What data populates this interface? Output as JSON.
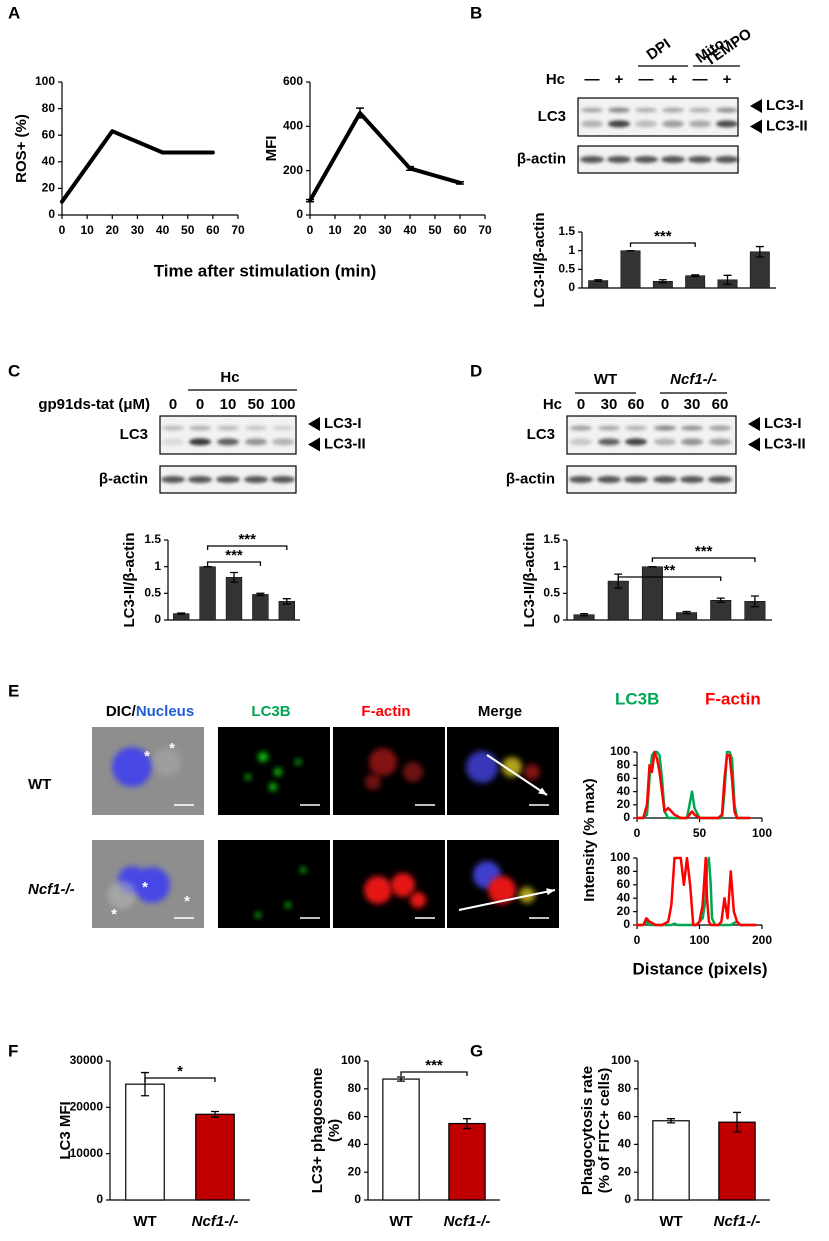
{
  "panel_labels": [
    "A",
    "B",
    "C",
    "D",
    "E",
    "F",
    "G"
  ],
  "chart_data": [
    {
      "type": "line",
      "ylabel": "ROS+ (%)",
      "xlabel": "Time after stimulation (min)",
      "x": [
        0,
        20,
        40,
        60
      ],
      "values": [
        10,
        63,
        47,
        47
      ],
      "color": "#000000",
      "xlim": [
        0,
        70
      ],
      "xticks": [
        0,
        10,
        20,
        30,
        40,
        50,
        60,
        70
      ],
      "ylim": [
        0,
        100
      ],
      "yticks": [
        0,
        20,
        40,
        60,
        80,
        100
      ]
    },
    {
      "type": "line",
      "ylabel": "MFI",
      "x": [
        0,
        20,
        40,
        60
      ],
      "values": [
        65,
        460,
        210,
        145
      ],
      "errors": [
        5,
        22,
        8,
        5
      ],
      "color": "#000000",
      "xlim": [
        0,
        70
      ],
      "xticks": [
        0,
        10,
        20,
        30,
        40,
        50,
        60,
        70
      ],
      "ylim": [
        0,
        600
      ],
      "yticks": [
        0,
        200,
        400,
        600
      ]
    },
    {
      "type": "bar",
      "ylabel": "LC3-II/β-actin",
      "categories": [
        null,
        null,
        null,
        null,
        null,
        null
      ],
      "values": [
        0.2,
        1,
        0.18,
        0.33,
        0.22,
        0.97
      ],
      "errors": [
        0.02,
        0,
        0.04,
        0.02,
        0.12,
        0.14
      ],
      "color": "#333333",
      "ylim": [
        0,
        1.5
      ],
      "yticks": [
        0,
        0.5,
        1,
        1.5
      ],
      "annotations": [
        "***"
      ]
    },
    {
      "type": "bar",
      "ylabel": "LC3-II/β-actin",
      "categories": [
        null,
        null,
        null,
        null,
        null
      ],
      "values": [
        0.12,
        1,
        0.8,
        0.48,
        0.35
      ],
      "errors": [
        0.01,
        0,
        0.09,
        0.02,
        0.05
      ],
      "color": "#333333",
      "ylim": [
        0,
        1.5
      ],
      "yticks": [
        0,
        0.5,
        1,
        1.5
      ],
      "annotations": [
        "***",
        "***"
      ]
    },
    {
      "type": "bar",
      "ylabel": "LC3-II/β-actin",
      "categories": [
        null,
        null,
        null,
        null,
        null,
        null
      ],
      "values": [
        0.1,
        0.73,
        1,
        0.14,
        0.37,
        0.35
      ],
      "errors": [
        0.02,
        0.13,
        0,
        0.02,
        0.04,
        0.1
      ],
      "color": "#333333",
      "ylim": [
        0,
        1.5
      ],
      "yticks": [
        0,
        0.5,
        1,
        1.5
      ],
      "annotations": [
        "***",
        "**"
      ]
    },
    {
      "type": "line",
      "ylabel": "Intensity (% max)",
      "x": [
        0,
        5,
        8,
        10,
        12,
        14,
        16,
        18,
        20,
        22,
        25,
        30,
        35,
        40,
        42,
        44,
        46,
        50,
        55,
        60,
        65,
        68,
        70,
        72,
        74,
        76,
        78,
        80,
        85,
        90
      ],
      "series": [
        {
          "name": "LC3B",
          "color": "#00a651",
          "values": [
            0,
            0,
            5,
            60,
            95,
            100,
            100,
            95,
            60,
            10,
            0,
            0,
            0,
            0,
            20,
            40,
            15,
            0,
            0,
            0,
            0,
            0,
            40,
            100,
            100,
            90,
            20,
            0,
            0,
            0
          ]
        },
        {
          "name": "F-actin",
          "color": "#ff0000",
          "values": [
            0,
            0,
            20,
            80,
            70,
            100,
            90,
            70,
            40,
            10,
            15,
            5,
            0,
            0,
            5,
            10,
            5,
            0,
            0,
            0,
            0,
            5,
            60,
            95,
            95,
            60,
            10,
            0,
            0,
            0
          ]
        }
      ],
      "xlim": [
        0,
        100
      ],
      "xticks": [
        0,
        50,
        100
      ],
      "ylim": [
        0,
        100
      ],
      "yticks": [
        0,
        20,
        40,
        60,
        80,
        100
      ]
    },
    {
      "type": "line",
      "xlabel": "Distance (pixels)",
      "x": [
        0,
        10,
        15,
        20,
        30,
        40,
        50,
        55,
        60,
        65,
        70,
        75,
        80,
        85,
        90,
        95,
        100,
        105,
        110,
        112,
        115,
        118,
        120,
        125,
        130,
        135,
        140,
        145,
        150,
        155,
        160,
        165,
        170,
        180,
        190
      ],
      "series": [
        {
          "color": "#00a651",
          "values": [
            0,
            0,
            5,
            0,
            0,
            0,
            0,
            0,
            2,
            0,
            0,
            0,
            0,
            0,
            0,
            0,
            5,
            10,
            40,
            90,
            100,
            60,
            10,
            0,
            0,
            0,
            0,
            0,
            0,
            3,
            5,
            0,
            0,
            0,
            0
          ]
        },
        {
          "color": "#ff0000",
          "values": [
            0,
            0,
            10,
            5,
            0,
            0,
            5,
            30,
            100,
            100,
            100,
            60,
            100,
            60,
            0,
            0,
            5,
            30,
            100,
            40,
            5,
            0,
            0,
            0,
            0,
            5,
            40,
            10,
            80,
            20,
            5,
            0,
            0,
            0,
            0
          ]
        }
      ],
      "xlim": [
        0,
        200
      ],
      "xticks": [
        0,
        100,
        200
      ],
      "ylim": [
        0,
        100
      ],
      "yticks": [
        0,
        20,
        40,
        60,
        80,
        100
      ]
    },
    {
      "type": "bar",
      "ylabel": "LC3 MFI",
      "categories": [
        "WT",
        "Ncf1-/-"
      ],
      "values": [
        25000,
        18500
      ],
      "errors": [
        2500,
        600
      ],
      "colors": [
        "#ffffff",
        "#c00000"
      ],
      "ylim": [
        0,
        30000
      ],
      "yticks": [
        0,
        10000,
        20000,
        30000
      ],
      "annotations": [
        "*"
      ]
    },
    {
      "type": "bar",
      "ylabel": [
        "LC3+ phagosome",
        "(%)"
      ],
      "categories": [
        "WT",
        "Ncf1-/-"
      ],
      "values": [
        87,
        55
      ],
      "errors": [
        1.5,
        3.5
      ],
      "colors": [
        "#ffffff",
        "#c00000"
      ],
      "ylim": [
        0,
        100
      ],
      "yticks": [
        0,
        20,
        40,
        60,
        80,
        100
      ],
      "annotations": [
        "***"
      ]
    },
    {
      "type": "bar",
      "ylabel": [
        "Phagocytosis rate",
        "(% of FITC+ cells)"
      ],
      "categories": [
        "WT",
        "Ncf1-/-"
      ],
      "values": [
        57,
        56
      ],
      "errors": [
        1.5,
        7
      ],
      "colors": [
        "#ffffff",
        "#c00000"
      ],
      "ylim": [
        0,
        100
      ],
      "yticks": [
        0,
        20,
        40,
        60,
        80,
        100
      ]
    }
  ],
  "blots": {
    "B": {
      "treatment": "Hc",
      "lanes": [
        "—",
        "+",
        "—",
        "+",
        "—",
        "+"
      ],
      "groups": [
        [
          "DPI"
        ],
        [
          "Mito-",
          "TEMPO"
        ]
      ],
      "rows": [
        "LC3",
        "β-actin"
      ],
      "bands": [
        "LC3-I",
        "LC3-II"
      ]
    },
    "C": {
      "treatment": "Hc",
      "dose": "gp91ds-tat (μM)",
      "lanes": [
        "0",
        "0",
        "10",
        "50",
        "100"
      ],
      "rows": [
        "LC3",
        "β-actin"
      ],
      "bands": [
        "LC3-I",
        "LC3-II"
      ]
    },
    "D": {
      "groups": [
        [
          "WT"
        ],
        [
          "Ncf1-/-"
        ]
      ],
      "treatment": "Hc",
      "lanes": [
        "0",
        "30",
        "60",
        "0",
        "30",
        "60"
      ],
      "rows": [
        "LC3",
        "β-actin"
      ],
      "bands": [
        "LC3-I",
        "LC3-II"
      ]
    }
  },
  "microscopy": {
    "columns": [
      "DIC/",
      "Nucleus",
      "LC3B",
      "F-actin",
      "Merge"
    ],
    "rows": [
      "WT",
      "Ncf1-/-"
    ],
    "marker": "*"
  }
}
